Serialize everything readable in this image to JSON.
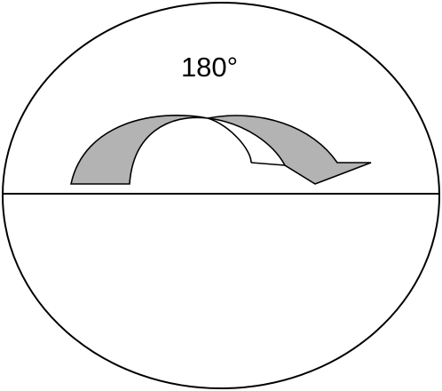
{
  "diagram": {
    "rotation_label": "180°",
    "colors": {
      "outline": "#000000",
      "arrow_fill": "#b3b3b3",
      "background": "#ffffff"
    }
  }
}
